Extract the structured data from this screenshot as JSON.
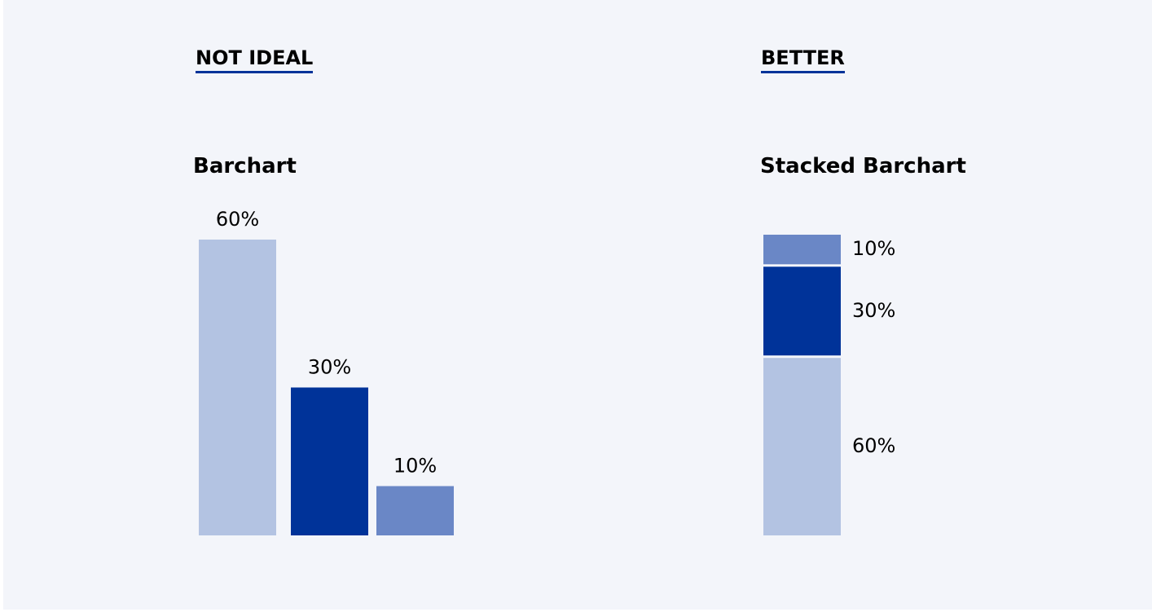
{
  "panels": [
    {
      "heading": "NOT IDEAL"
    },
    {
      "heading": "BETTER"
    }
  ],
  "chart_data": [
    {
      "type": "bar",
      "title": "Barchart",
      "categories": [
        "",
        "",
        ""
      ],
      "values": [
        60,
        30,
        10
      ],
      "data_labels": [
        "60%",
        "30%",
        "10%"
      ],
      "colors": [
        "#b3c3e2",
        "#003399",
        "#6a87c6"
      ],
      "ylim": [
        0,
        60
      ],
      "grid": false,
      "axes_visible": false
    },
    {
      "type": "bar",
      "stacked": true,
      "title": "Stacked Barchart",
      "series": [
        {
          "values": [
            60
          ],
          "label": "60%",
          "color": "#b3c3e2"
        },
        {
          "values": [
            30
          ],
          "label": "30%",
          "color": "#003399"
        },
        {
          "values": [
            10
          ],
          "label": "10%",
          "color": "#6a87c6"
        }
      ],
      "ylim": [
        0,
        100
      ],
      "grid": false,
      "axes_visible": false
    }
  ]
}
